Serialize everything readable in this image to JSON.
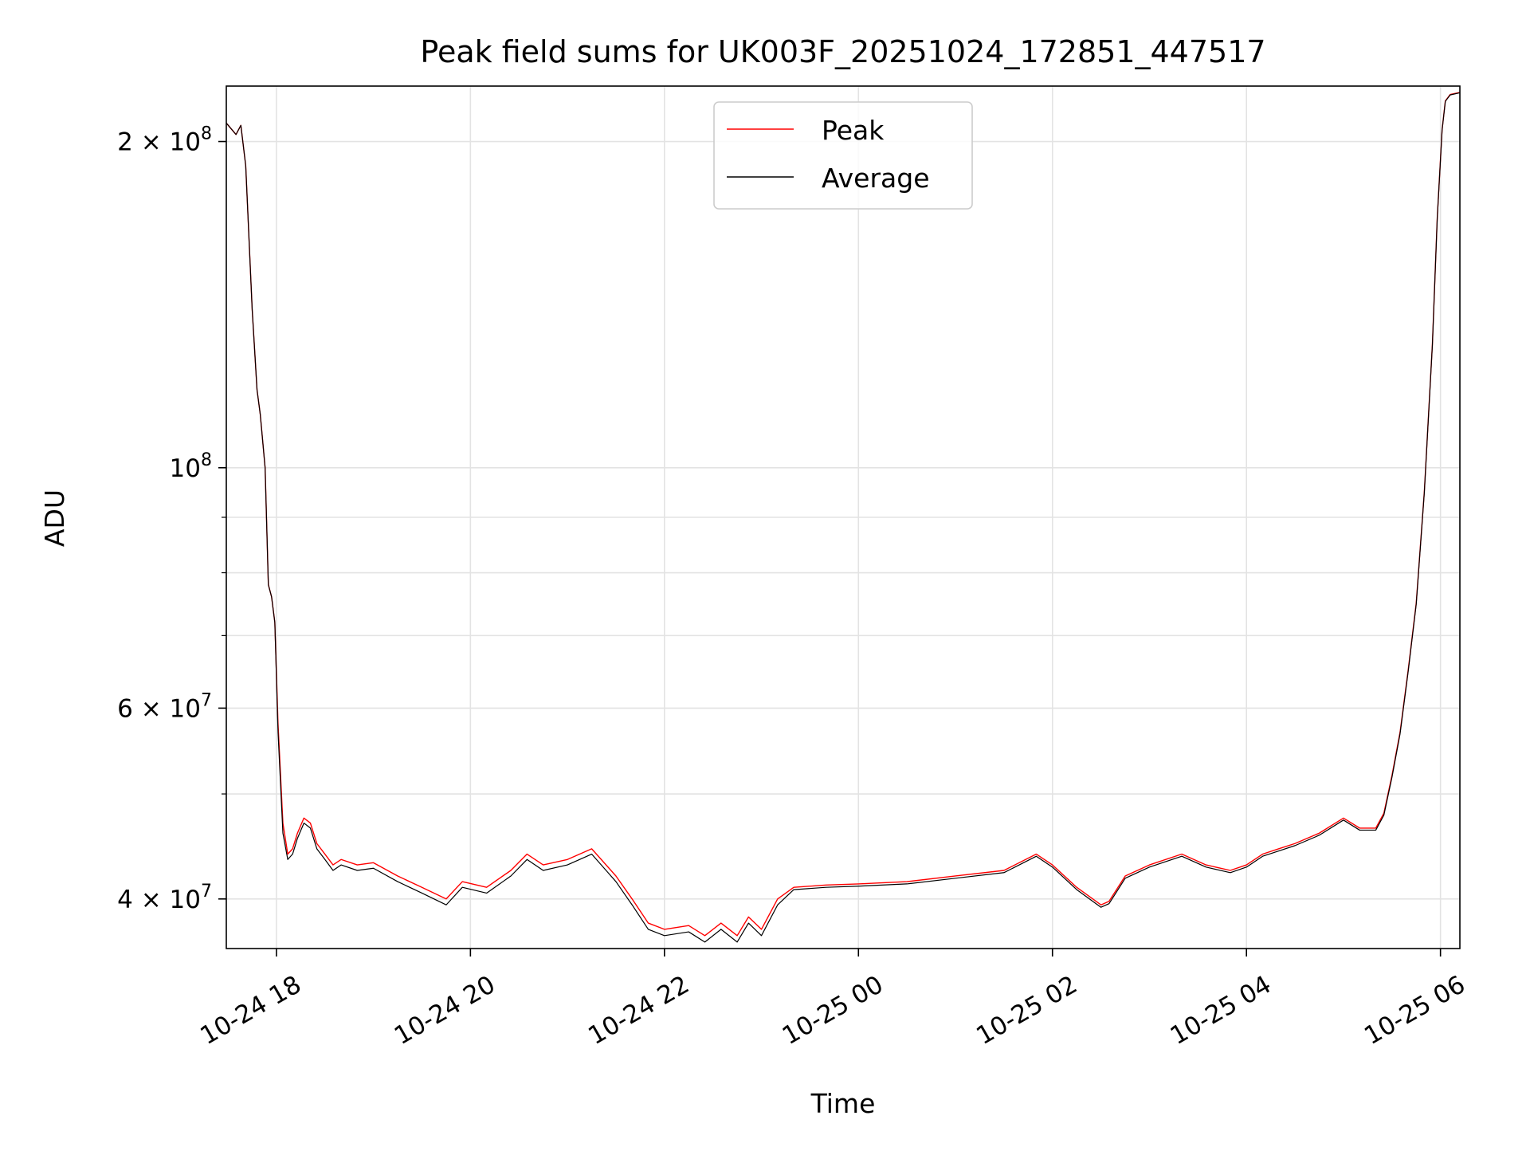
{
  "chart_data": {
    "type": "line",
    "title": "Peak field sums for UK003F_20251024_172851_447517",
    "xlabel": "Time",
    "ylabel": "ADU",
    "x_range": [
      "2025-10-24T17:29",
      "2025-10-25T06:12"
    ],
    "y_scale": "log",
    "ylim": [
      36000000,
      225000000
    ],
    "grid": true,
    "legend_position": "top-center",
    "x_ticks": [
      {
        "label": "10-24 18",
        "value": "2025-10-24T18:00"
      },
      {
        "label": "10-24 20",
        "value": "2025-10-24T20:00"
      },
      {
        "label": "10-24 22",
        "value": "2025-10-24T22:00"
      },
      {
        "label": "10-25 00",
        "value": "2025-10-25T00:00"
      },
      {
        "label": "10-25 02",
        "value": "2025-10-25T02:00"
      },
      {
        "label": "10-25 04",
        "value": "2025-10-25T04:00"
      },
      {
        "label": "10-25 06",
        "value": "2025-10-25T06:00"
      }
    ],
    "y_ticks": [
      {
        "label": "4 × 10⁷",
        "mantissa": "4",
        "exp": "7",
        "value": 40000000
      },
      {
        "label": "6 × 10⁷",
        "mantissa": "6",
        "exp": "7",
        "value": 60000000
      },
      {
        "label": "10⁸",
        "mantissa": "",
        "exp": "8",
        "value": 100000000
      },
      {
        "label": "2 × 10⁸",
        "mantissa": "2",
        "exp": "8",
        "value": 200000000
      }
    ],
    "y_minor_ticks": [
      50000000,
      70000000,
      80000000,
      90000000
    ],
    "series": [
      {
        "name": "Peak",
        "color": "#ff0000",
        "x": [
          "2025-10-24T17:29",
          "2025-10-24T17:35",
          "2025-10-24T17:38",
          "2025-10-24T17:41",
          "2025-10-24T17:45",
          "2025-10-24T17:48",
          "2025-10-24T17:50",
          "2025-10-24T17:53",
          "2025-10-24T17:55",
          "2025-10-24T17:57",
          "2025-10-24T17:59",
          "2025-10-24T18:01",
          "2025-10-24T18:04",
          "2025-10-24T18:07",
          "2025-10-24T18:10",
          "2025-10-24T18:13",
          "2025-10-24T18:17",
          "2025-10-24T18:21",
          "2025-10-24T18:25",
          "2025-10-24T18:30",
          "2025-10-24T18:35",
          "2025-10-24T18:40",
          "2025-10-24T18:50",
          "2025-10-24T19:00",
          "2025-10-24T19:15",
          "2025-10-24T19:30",
          "2025-10-24T19:45",
          "2025-10-24T19:55",
          "2025-10-24T20:10",
          "2025-10-24T20:25",
          "2025-10-24T20:35",
          "2025-10-24T20:45",
          "2025-10-24T21:00",
          "2025-10-24T21:15",
          "2025-10-24T21:30",
          "2025-10-24T21:40",
          "2025-10-24T21:50",
          "2025-10-24T22:00",
          "2025-10-24T22:15",
          "2025-10-24T22:25",
          "2025-10-24T22:35",
          "2025-10-24T22:45",
          "2025-10-24T22:52",
          "2025-10-24T23:00",
          "2025-10-24T23:10",
          "2025-10-24T23:20",
          "2025-10-24T23:40",
          "2025-10-25T00:00",
          "2025-10-25T00:30",
          "2025-10-25T01:00",
          "2025-10-25T01:30",
          "2025-10-25T01:50",
          "2025-10-25T02:00",
          "2025-10-25T02:15",
          "2025-10-25T02:30",
          "2025-10-25T02:35",
          "2025-10-25T02:45",
          "2025-10-25T03:00",
          "2025-10-25T03:20",
          "2025-10-25T03:35",
          "2025-10-25T03:50",
          "2025-10-25T04:00",
          "2025-10-25T04:10",
          "2025-10-25T04:20",
          "2025-10-25T04:30",
          "2025-10-25T04:45",
          "2025-10-25T05:00",
          "2025-10-25T05:10",
          "2025-10-25T05:20",
          "2025-10-25T05:25",
          "2025-10-25T05:30",
          "2025-10-25T05:35",
          "2025-10-25T05:40",
          "2025-10-25T05:45",
          "2025-10-25T05:50",
          "2025-10-25T05:55",
          "2025-10-25T05:58",
          "2025-10-25T06:01",
          "2025-10-25T06:03",
          "2025-10-25T06:06",
          "2025-10-25T06:12"
        ],
        "values": [
          208000000,
          203000000,
          207000000,
          190000000,
          140000000,
          118000000,
          112000000,
          100000000,
          78000000,
          76000000,
          72000000,
          58000000,
          47000000,
          44000000,
          44500000,
          46000000,
          47500000,
          47000000,
          45000000,
          44000000,
          43000000,
          43500000,
          43000000,
          43200000,
          42000000,
          41000000,
          40000000,
          41500000,
          41000000,
          42500000,
          44000000,
          43000000,
          43500000,
          44500000,
          42000000,
          40000000,
          38000000,
          37500000,
          37800000,
          37000000,
          38000000,
          37000000,
          38500000,
          37500000,
          40000000,
          41000000,
          41200000,
          41300000,
          41500000,
          42000000,
          42500000,
          44000000,
          43000000,
          41000000,
          39500000,
          39800000,
          42000000,
          43000000,
          44000000,
          43000000,
          42500000,
          43000000,
          44000000,
          44500000,
          45000000,
          46000000,
          47500000,
          46500000,
          46500000,
          48000000,
          52000000,
          57000000,
          65000000,
          75000000,
          95000000,
          130000000,
          170000000,
          205000000,
          218000000,
          221000000,
          222000000
        ]
      },
      {
        "name": "Average",
        "color": "#000000",
        "x": [
          "2025-10-24T17:29",
          "2025-10-24T17:35",
          "2025-10-24T17:38",
          "2025-10-24T17:41",
          "2025-10-24T17:45",
          "2025-10-24T17:48",
          "2025-10-24T17:50",
          "2025-10-24T17:53",
          "2025-10-24T17:55",
          "2025-10-24T17:57",
          "2025-10-24T17:59",
          "2025-10-24T18:01",
          "2025-10-24T18:04",
          "2025-10-24T18:07",
          "2025-10-24T18:10",
          "2025-10-24T18:13",
          "2025-10-24T18:17",
          "2025-10-24T18:21",
          "2025-10-24T18:25",
          "2025-10-24T18:30",
          "2025-10-24T18:35",
          "2025-10-24T18:40",
          "2025-10-24T18:50",
          "2025-10-24T19:00",
          "2025-10-24T19:15",
          "2025-10-24T19:30",
          "2025-10-24T19:45",
          "2025-10-24T19:55",
          "2025-10-24T20:10",
          "2025-10-24T20:25",
          "2025-10-24T20:35",
          "2025-10-24T20:45",
          "2025-10-24T21:00",
          "2025-10-24T21:15",
          "2025-10-24T21:30",
          "2025-10-24T21:40",
          "2025-10-24T21:50",
          "2025-10-24T22:00",
          "2025-10-24T22:15",
          "2025-10-24T22:25",
          "2025-10-24T22:35",
          "2025-10-24T22:45",
          "2025-10-24T22:52",
          "2025-10-24T23:00",
          "2025-10-24T23:10",
          "2025-10-24T23:20",
          "2025-10-24T23:40",
          "2025-10-25T00:00",
          "2025-10-25T00:30",
          "2025-10-25T01:00",
          "2025-10-25T01:30",
          "2025-10-25T01:50",
          "2025-10-25T02:00",
          "2025-10-25T02:15",
          "2025-10-25T02:30",
          "2025-10-25T02:35",
          "2025-10-25T02:45",
          "2025-10-25T03:00",
          "2025-10-25T03:20",
          "2025-10-25T03:35",
          "2025-10-25T03:50",
          "2025-10-25T04:00",
          "2025-10-25T04:10",
          "2025-10-25T04:20",
          "2025-10-25T04:30",
          "2025-10-25T04:45",
          "2025-10-25T05:00",
          "2025-10-25T05:10",
          "2025-10-25T05:20",
          "2025-10-25T05:25",
          "2025-10-25T05:30",
          "2025-10-25T05:35",
          "2025-10-25T05:40",
          "2025-10-25T05:45",
          "2025-10-25T05:50",
          "2025-10-25T05:55",
          "2025-10-25T05:58",
          "2025-10-25T06:01",
          "2025-10-25T06:03",
          "2025-10-25T06:06",
          "2025-10-25T06:12"
        ],
        "values": [
          208000000,
          203000000,
          207000000,
          190000000,
          140000000,
          118000000,
          112000000,
          100000000,
          78000000,
          76000000,
          72000000,
          57000000,
          46000000,
          43500000,
          44000000,
          45500000,
          47000000,
          46500000,
          44500000,
          43500000,
          42500000,
          43000000,
          42500000,
          42700000,
          41500000,
          40500000,
          39500000,
          41000000,
          40500000,
          42000000,
          43500000,
          42500000,
          43000000,
          44000000,
          41500000,
          39500000,
          37500000,
          37000000,
          37300000,
          36500000,
          37500000,
          36500000,
          38000000,
          37000000,
          39500000,
          40800000,
          41000000,
          41100000,
          41300000,
          41800000,
          42300000,
          43800000,
          42800000,
          40800000,
          39300000,
          39600000,
          41800000,
          42800000,
          43800000,
          42800000,
          42300000,
          42800000,
          43800000,
          44300000,
          44800000,
          45800000,
          47300000,
          46300000,
          46300000,
          47800000,
          51800000,
          56800000,
          64800000,
          74800000,
          94800000,
          129800000,
          169800000,
          204800000,
          217800000,
          220800000,
          221800000
        ]
      }
    ]
  }
}
